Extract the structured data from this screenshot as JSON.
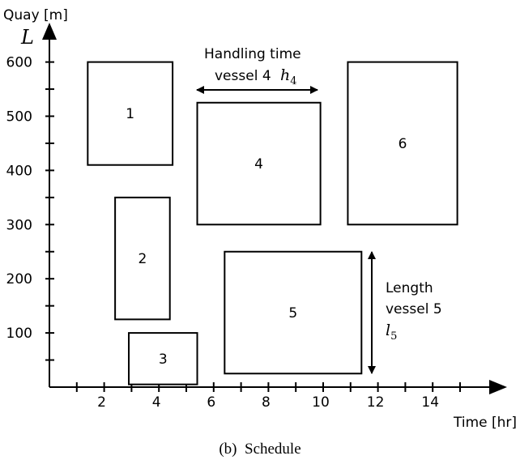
{
  "axes": {
    "y_label": "Quay [m]",
    "y_symbol": "L",
    "x_label": "Time [hr]",
    "y_ticks": [
      "100",
      "200",
      "300",
      "400",
      "500",
      "600"
    ],
    "x_ticks": [
      "2",
      "4",
      "6",
      "8",
      "10",
      "12",
      "14"
    ]
  },
  "vessels": [
    {
      "label": "1",
      "start": 1.4,
      "end": 4.5,
      "from": 410,
      "to": 600
    },
    {
      "label": "2",
      "start": 2.4,
      "end": 4.4,
      "from": 125,
      "to": 350
    },
    {
      "label": "3",
      "start": 2.9,
      "end": 5.4,
      "from": 5,
      "to": 100
    },
    {
      "label": "4",
      "start": 5.4,
      "end": 9.9,
      "from": 300,
      "to": 525
    },
    {
      "label": "5",
      "start": 6.4,
      "end": 11.4,
      "from": 25,
      "to": 250
    },
    {
      "label": "6",
      "start": 10.9,
      "end": 14.9,
      "from": 300,
      "to": 600
    }
  ],
  "annotations": {
    "handling_line1": "Handling time",
    "handling_line2": "vessel 4",
    "handling_symbol": "h",
    "handling_sub": "4",
    "length_line1": "Length",
    "length_line2": "vessel 5",
    "length_symbol": "l",
    "length_sub": "5"
  },
  "caption": "(b)  Schedule"
}
